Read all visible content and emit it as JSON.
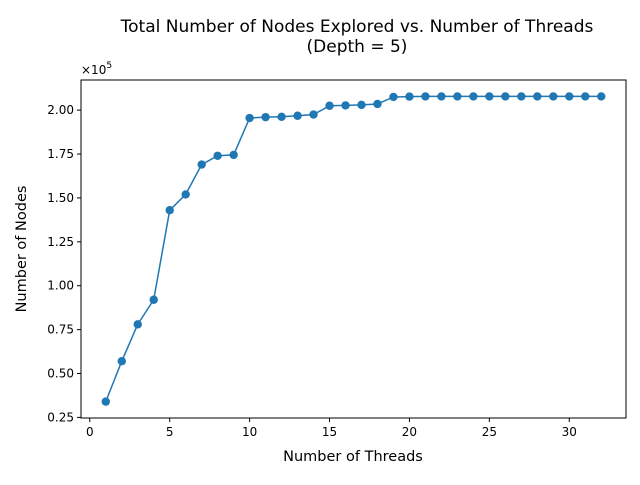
{
  "chart_data": {
    "type": "line",
    "title": "Total Number of Nodes Explored vs. Number of Threads",
    "subtitle": "(Depth = 5)",
    "xlabel": "Number of Threads",
    "ylabel": "Number of Nodes",
    "y_scale_label": "×10",
    "y_scale_exponent": "5",
    "xlim": [
      -0.55,
      33.55
    ],
    "ylim": [
      0.2466,
      2.1716
    ],
    "x_ticks": [
      0,
      5,
      10,
      15,
      20,
      25,
      30
    ],
    "x_tick_labels": [
      "0",
      "5",
      "10",
      "15",
      "20",
      "25",
      "30"
    ],
    "y_ticks": [
      0.25,
      0.5,
      0.75,
      1.0,
      1.25,
      1.5,
      1.75,
      2.0
    ],
    "y_tick_labels": [
      "0.25",
      "0.50",
      "0.75",
      "1.00",
      "1.25",
      "1.50",
      "1.75",
      "2.00"
    ],
    "grid": false,
    "marker": "circle",
    "colors": {
      "series": "#1f77b4",
      "axis": "#000000",
      "background": "#ffffff"
    },
    "series": [
      {
        "x": [
          1,
          2,
          3,
          4,
          5,
          6,
          7,
          8,
          9,
          10,
          11,
          12,
          13,
          14,
          15,
          16,
          17,
          18,
          19,
          20,
          21,
          22,
          23,
          24,
          25,
          26,
          27,
          28,
          29,
          30,
          31,
          32
        ],
        "values": [
          0.34,
          0.57,
          0.78,
          0.92,
          1.43,
          1.52,
          1.69,
          1.74,
          1.745,
          1.955,
          1.96,
          1.962,
          1.968,
          1.975,
          2.025,
          2.027,
          2.03,
          2.035,
          2.075,
          2.077,
          2.078,
          2.078,
          2.078,
          2.078,
          2.078,
          2.078,
          2.078,
          2.078,
          2.078,
          2.078,
          2.078,
          2.078
        ]
      }
    ]
  }
}
